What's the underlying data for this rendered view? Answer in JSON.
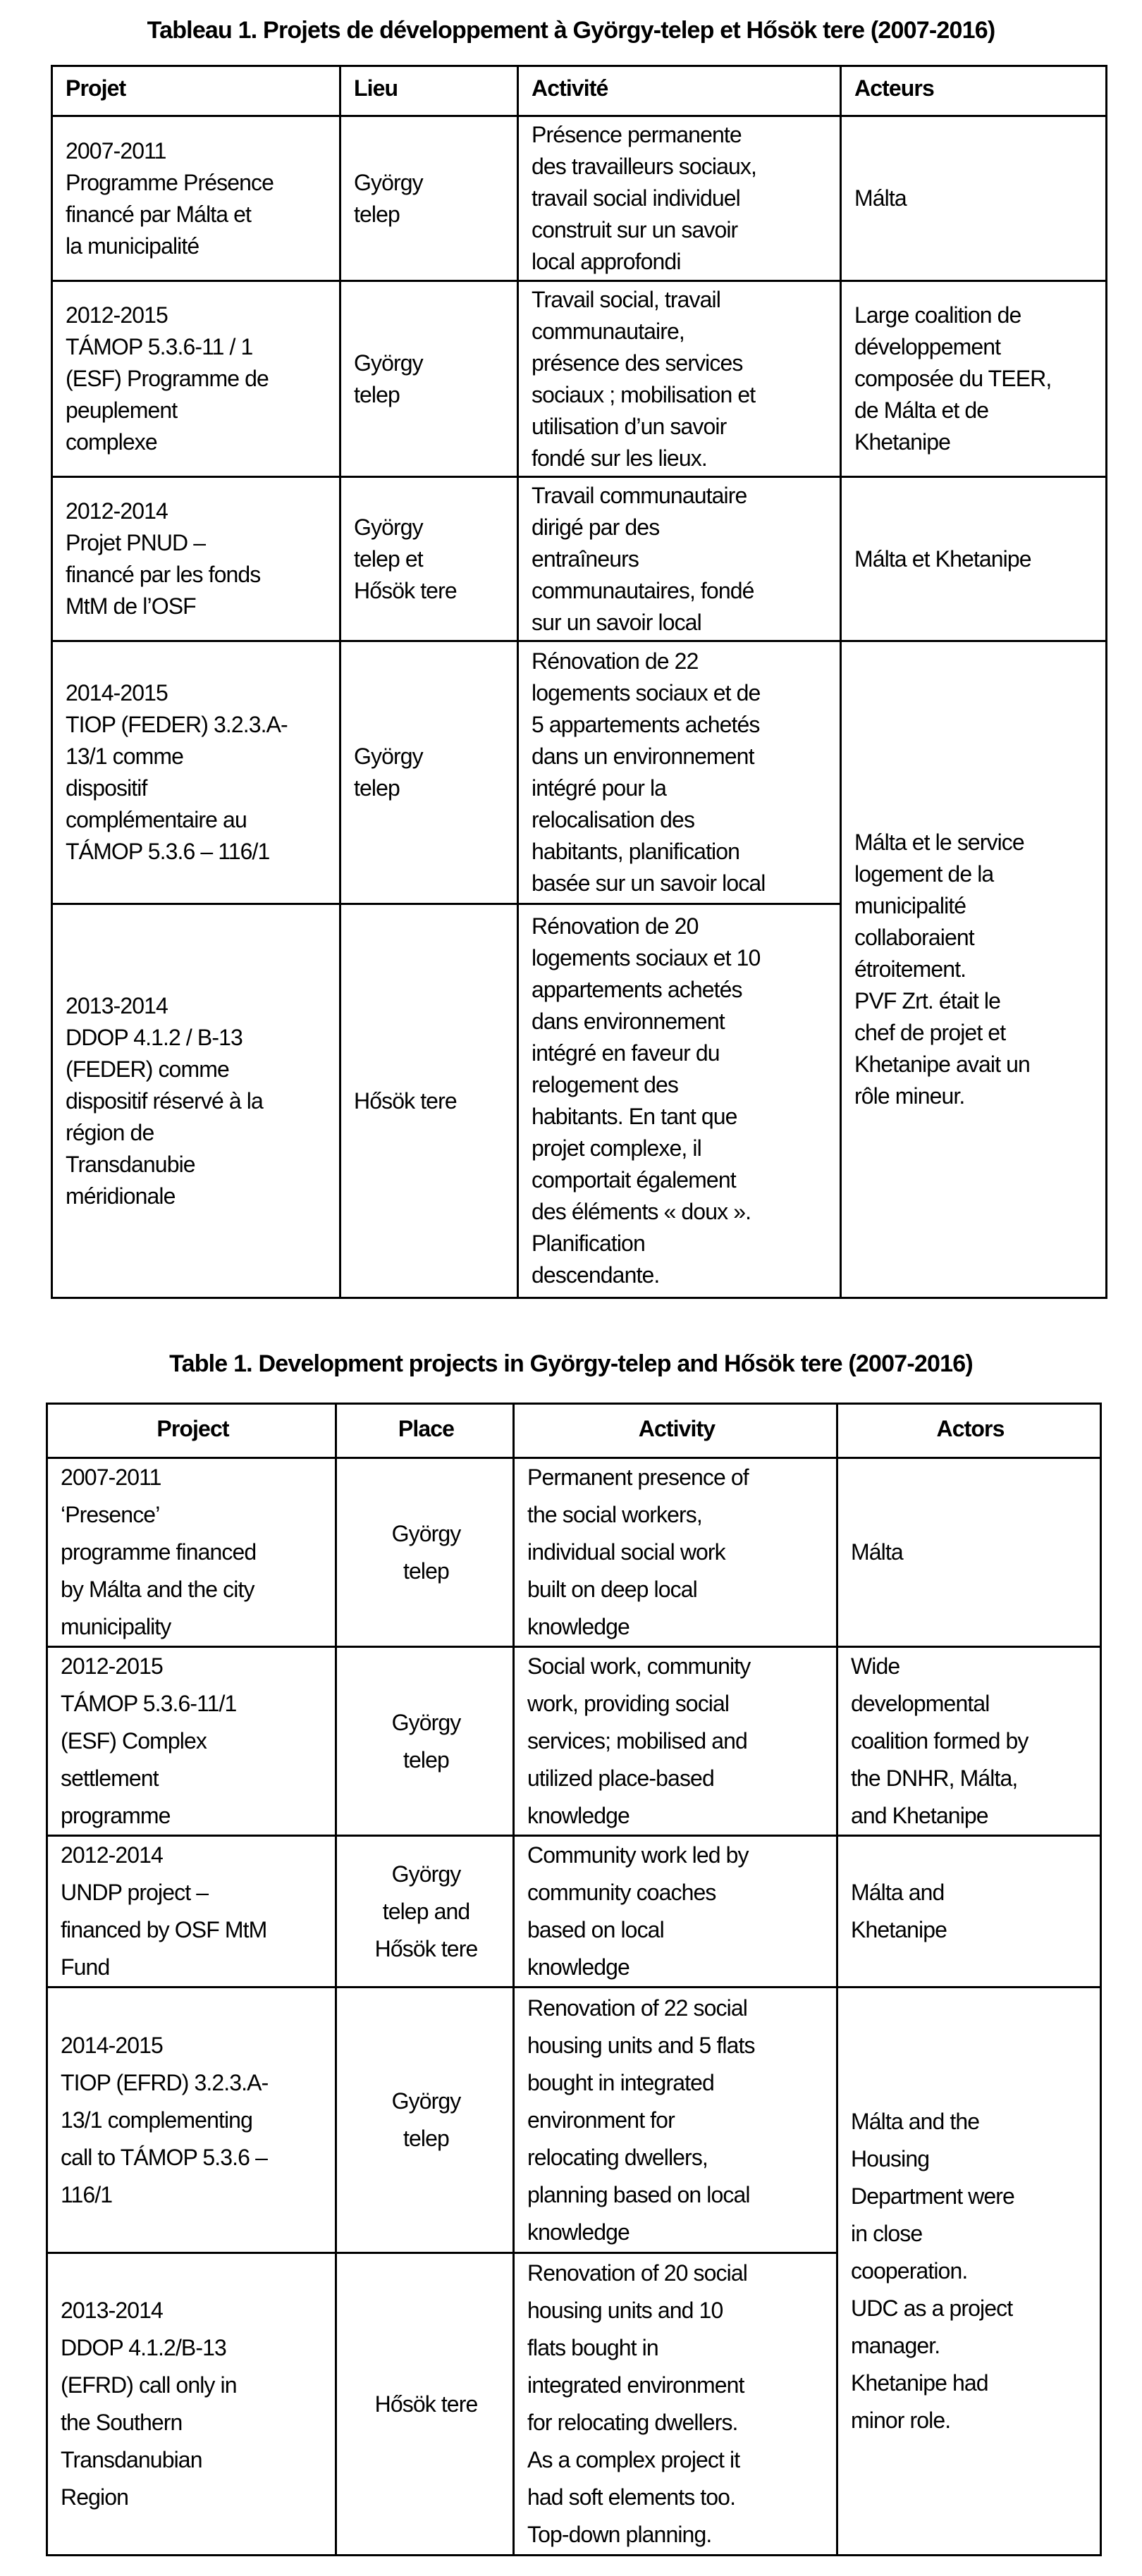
{
  "table_fr": {
    "title": "Tableau 1. Projets de développement à György-telep et Hősök tere (2007-2016)",
    "headers": [
      "Projet",
      "Lieu",
      "Activité",
      "Acteurs"
    ],
    "rows": [
      {
        "project": "2007-2011\nProgramme Présence\nfinancé par Málta et\nla municipalité",
        "place": "György\ntelep",
        "activity": "Présence permanente\ndes travailleurs sociaux,\ntravail social individuel\nconstruit sur un savoir\nlocal approfondi",
        "actors": "Málta"
      },
      {
        "project": "2012-2015\nTÁMOP 5.3.6-11 / 1\n(ESF) Programme de\npeuplement\ncomplexe",
        "place": "György\ntelep",
        "activity": "Travail social, travail\ncommunautaire,\nprésence des services\nsociaux ; mobilisation et\nutilisation d’un savoir\nfondé sur les lieux.",
        "actors": "Large coalition de\ndéveloppement\ncomposée du TEER,\nde Málta et de\nKhetanipe"
      },
      {
        "project": "2012-2014\nProjet PNUD –\nfinancé par les fonds\nMtM de l’OSF",
        "place": "György\ntelep et\nHősök tere",
        "activity": "Travail communautaire\ndirigé par des\nentraîneurs\ncommunautaires, fondé\nsur un savoir local",
        "actors": "Málta et Khetanipe"
      },
      {
        "project": "2014-2015\nTIOP (FEDER) 3.2.3.A-\n13/1 comme\ndispositif\ncomplémentaire au\nTÁMOP 5.3.6 – 116/1",
        "place": "György\ntelep",
        "activity": "Rénovation de 22\nlogements sociaux et de\n5 appartements achetés\ndans un environnement\nintégré pour la\nrelocalisation des\nhabitants, planification\nbasée sur un savoir local",
        "actors": "Málta et le service\nlogement de la\nmunicipalité\ncollaboraient\nétroitement.\nPVF Zrt. était le\nchef de projet et\nKhetanipe avait un\nrôle mineur."
      },
      {
        "project": "2013-2014\nDDOP 4.1.2 / B-13\n(FEDER) comme\ndispositif réservé à la\nrégion de\nTransdanubie\nméridionale",
        "place": "Hősök tere",
        "activity": "Rénovation de 20\nlogements sociaux et 10\nappartements achetés\ndans environnement\nintégré en faveur du\nrelogement des\nhabitants. En tant que\nprojet complexe, il\ncomportait également\ndes éléments « doux ».\nPlanification\ndescendante."
      }
    ]
  },
  "table_en": {
    "title": "Table 1. Development projects in György-telep and Hősök tere (2007-2016)",
    "headers": [
      "Project",
      "Place",
      "Activity",
      "Actors"
    ],
    "rows": [
      {
        "project": "2007-2011\n‘Presence’\nprogramme financed\nby Málta and the city\nmunicipality",
        "place": "György\ntelep",
        "activity": "Permanent presence of\nthe social workers,\nindividual social work\nbuilt on deep local\nknowledge",
        "actors": "Málta"
      },
      {
        "project": "2012-2015\nTÁMOP 5.3.6-11/1\n(ESF) Complex\nsettlement\nprogramme",
        "place": "György\ntelep",
        "activity": "Social work, community\nwork, providing social\nservices; mobilised and\nutilized place-based\nknowledge",
        "actors": "Wide\ndevelopmental\ncoalition formed by\nthe DNHR, Málta,\nand Khetanipe"
      },
      {
        "project": "2012-2014\nUNDP project –\nfinanced by OSF MtM\nFund",
        "place": "György\ntelep and\nHősök tere",
        "activity": "Community work led by\ncommunity coaches\nbased on local\nknowledge",
        "actors": "Málta and\nKhetanipe"
      },
      {
        "project": "2014-2015\nTIOP (EFRD) 3.2.3.A-\n13/1 complementing\ncall to TÁMOP 5.3.6 –\n116/1",
        "place": "György\ntelep",
        "activity": "Renovation of 22 social\nhousing units and 5 flats\nbought in integrated\nenvironment for\nrelocating dwellers,\nplanning based on local\nknowledge",
        "actors": "Málta and the\nHousing\nDepartment were\nin close\ncooperation.\nUDC as a project\nmanager.\nKhetanipe had\nminor role."
      },
      {
        "project": "2013-2014\nDDOP 4.1.2/B-13\n(EFRD) call only in\nthe Southern\nTransdanubian\nRegion",
        "place": "Hősök tere",
        "activity": "Renovation of 20 social\nhousing units and 10\nflats bought in\nintegrated environment\nfor relocating dwellers.\nAs a complex project it\nhad soft elements too.\nTop-down planning."
      }
    ]
  }
}
